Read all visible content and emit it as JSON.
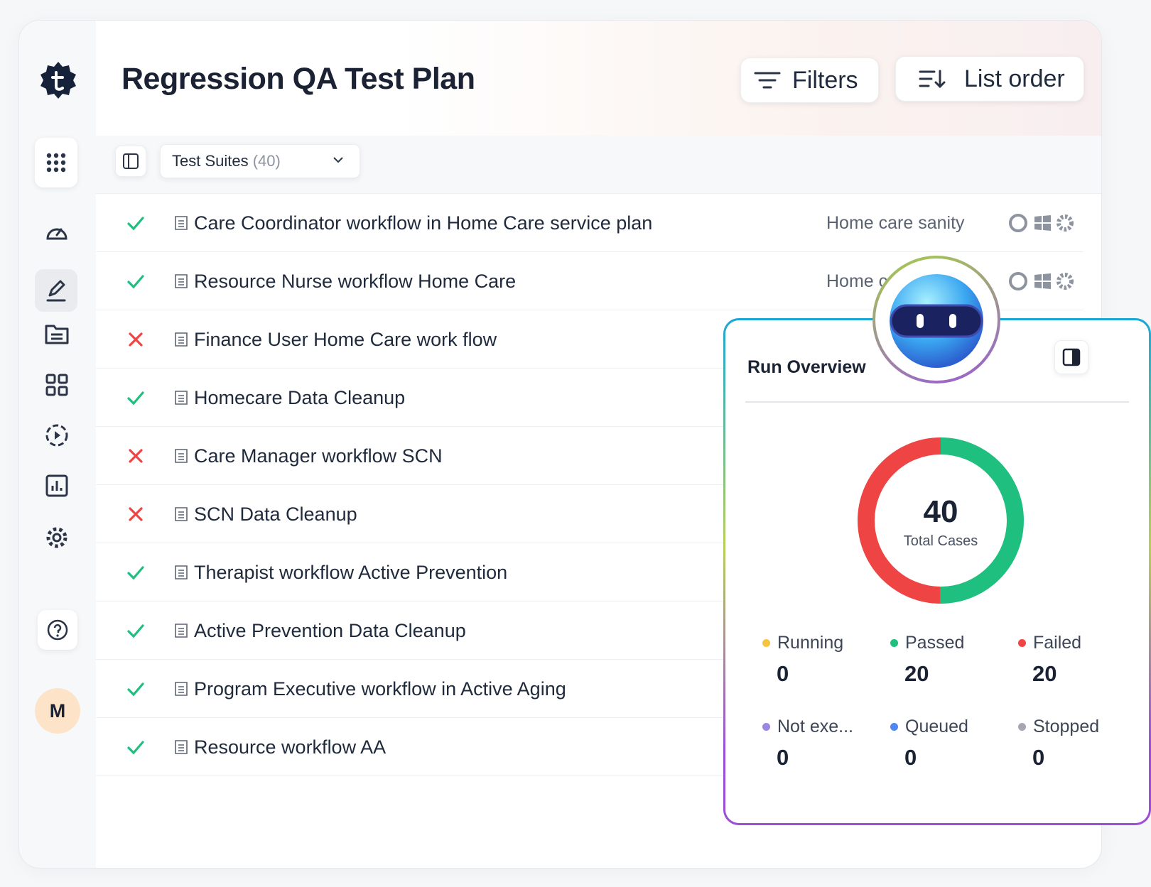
{
  "header": {
    "title": "Regression QA Test Plan",
    "buttons": [
      "Filters",
      "List order"
    ]
  },
  "sidebar": {
    "avatar": "M"
  },
  "toolbar": {
    "dropdown": "Test Suites",
    "count": "(40)"
  },
  "rows": [
    {
      "status": "passed",
      "name": "Care Coordinator workflow in Home Care service plan",
      "tag": "Home care sanity"
    },
    {
      "status": "passed",
      "name": "Resource Nurse workflow Home Care",
      "tag": "Home care sanity"
    },
    {
      "status": "failed",
      "name": "Finance User Home Care work flow"
    },
    {
      "status": "passed",
      "name": "Homecare Data Cleanup"
    },
    {
      "status": "failed",
      "name": "Care Manager workflow SCN"
    },
    {
      "status": "failed",
      "name": "SCN Data Cleanup"
    },
    {
      "status": "passed",
      "name": "Therapist workflow Active Prevention"
    },
    {
      "status": "passed",
      "name": "Active Prevention Data Cleanup"
    },
    {
      "status": "passed",
      "name": "Program Executive workflow in Active Aging"
    },
    {
      "status": "passed",
      "name": "Resource workflow AA"
    }
  ],
  "overview": {
    "title": "Run Overview",
    "total": 40,
    "total_label": "Total Cases",
    "stats": [
      {
        "label": "Running",
        "value": 0,
        "color": "#f5c542"
      },
      {
        "label": "Passed",
        "value": 20,
        "color": "#1fbf7f"
      },
      {
        "label": "Failed",
        "value": 20,
        "color": "#ef4444"
      },
      {
        "label": "Not exe...",
        "value": 0,
        "color": "#9b87e0"
      },
      {
        "label": "Queued",
        "value": 0,
        "color": "#4f86f0"
      },
      {
        "label": "Stopped",
        "value": 0,
        "color": "#a3a8b3"
      }
    ]
  }
}
